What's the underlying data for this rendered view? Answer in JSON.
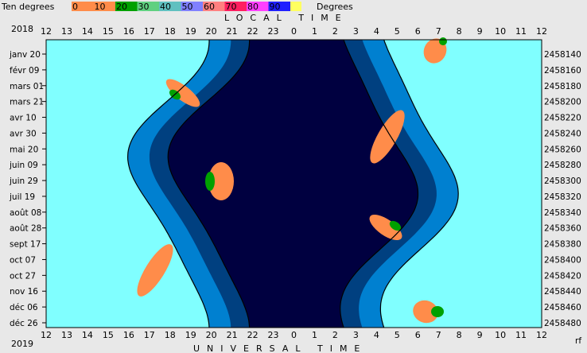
{
  "chart_data": {
    "type": "area",
    "legend": {
      "prefix": "Ten degrees",
      "suffix": "Degrees",
      "items": [
        {
          "label": "0",
          "color": "#ff8c4a"
        },
        {
          "label": "10",
          "color": "#ff8c4a"
        },
        {
          "label": "20",
          "color": "#00a000"
        },
        {
          "label": "30",
          "color": "#60d080"
        },
        {
          "label": "40",
          "color": "#60c0c0"
        },
        {
          "label": "50",
          "color": "#8080ff"
        },
        {
          "label": "60",
          "color": "#ff8080"
        },
        {
          "label": "70",
          "color": "#ff2060"
        },
        {
          "label": "80",
          "color": "#ff40ff"
        },
        {
          "label": "90",
          "color": "#2020ff"
        }
      ],
      "swatch_end": "#ffff60"
    },
    "top_axis_title": "LOCAL TIME",
    "bottom_axis_title": "UNIVERSAL TIME",
    "year_top": "2018",
    "year_bottom": "2019",
    "corner_label": "rf",
    "hour_ticks": [
      "12",
      "13",
      "14",
      "15",
      "16",
      "17",
      "18",
      "19",
      "20",
      "21",
      "22",
      "23",
      "0",
      "1",
      "2",
      "3",
      "4",
      "5",
      "6",
      "7",
      "8",
      "9",
      "10",
      "11",
      "12"
    ],
    "date_labels": [
      "janv 20",
      "févr 09",
      "mars 01",
      "mars 21",
      "avr 10",
      "avr 30",
      "mai 20",
      "juin 09",
      "juin 29",
      "juil 19",
      "août 08",
      "août 28",
      "sept 17",
      "oct 07",
      "oct 27",
      "nov 16",
      "déc 06",
      "déc 26"
    ],
    "jd_labels": [
      "2458140",
      "2458160",
      "2458180",
      "2458200",
      "2458220",
      "2458240",
      "2458260",
      "2458280",
      "2458300",
      "2458320",
      "2458340",
      "2458360",
      "2458380",
      "2458400",
      "2458420",
      "2458440",
      "2458460",
      "2458480"
    ],
    "colors": {
      "day": "#80ffff",
      "twilight_civil": "#0080d0",
      "twilight_deep": "#004080",
      "night": "#000040",
      "sun_low": "#ff8c4a",
      "sun_mid": "#00a000"
    }
  }
}
